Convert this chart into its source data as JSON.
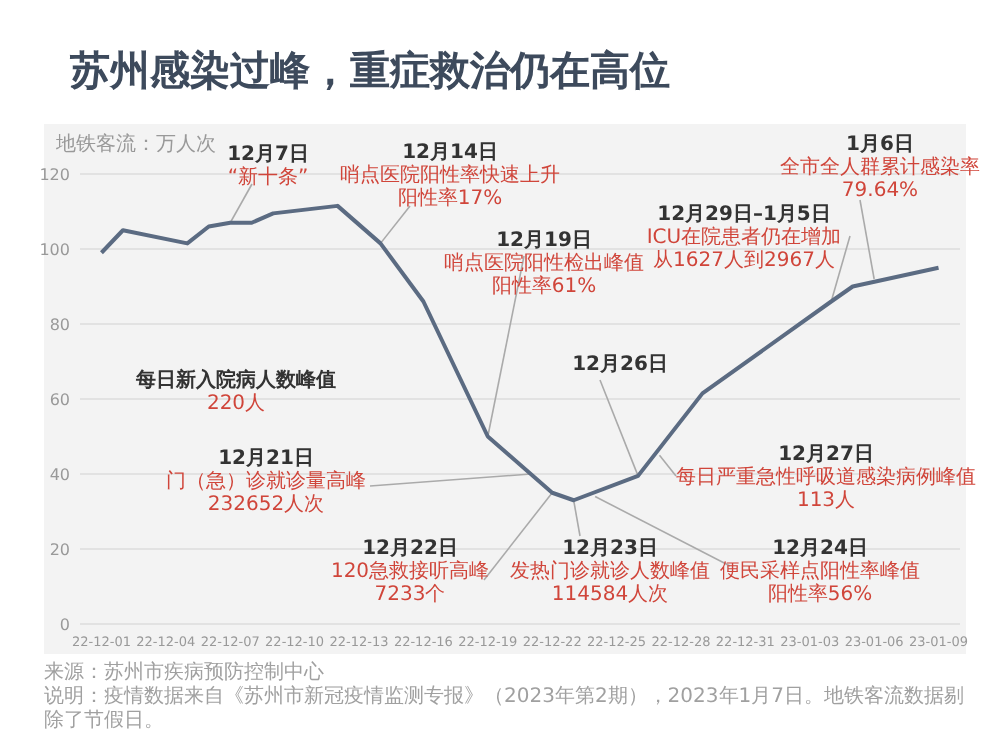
{
  "chart_data": {
    "type": "line",
    "title": "苏州感染过峰，重症救治仍在高位",
    "ylabel": "地铁客流：万人次",
    "x": [
      "2022-12-01",
      "2022-12-02",
      "2022-12-05",
      "2022-12-06",
      "2022-12-07",
      "2022-12-08",
      "2022-12-09",
      "2022-12-12",
      "2022-12-14",
      "2022-12-16",
      "2022-12-19",
      "2022-12-20",
      "2022-12-22",
      "2022-12-23",
      "2022-12-26",
      "2022-12-29",
      "2023-01-04",
      "2023-01-05",
      "2023-01-09"
    ],
    "series": [
      {
        "color": "#5b6b82",
        "values": [
          99,
          105,
          101.5,
          106,
          107,
          107,
          109.5,
          111.5,
          101.5,
          86,
          50,
          45,
          35,
          33,
          39.5,
          61.5,
          86,
          90,
          95
        ]
      }
    ],
    "xlim": [
      "2022-11-30",
      "2023-01-10"
    ],
    "xticks": [
      {
        "value": "2022-12-01",
        "label": "22-12-01"
      },
      {
        "value": "2022-12-04",
        "label": "22-12-04"
      },
      {
        "value": "2022-12-07",
        "label": "22-12-07"
      },
      {
        "value": "2022-12-10",
        "label": "22-12-10"
      },
      {
        "value": "2022-12-13",
        "label": "22-12-13"
      },
      {
        "value": "2022-12-16",
        "label": "22-12-16"
      },
      {
        "value": "2022-12-19",
        "label": "22-12-19"
      },
      {
        "value": "2022-12-22",
        "label": "22-12-22"
      },
      {
        "value": "2022-12-25",
        "label": "22-12-25"
      },
      {
        "value": "2022-12-28",
        "label": "22-12-28"
      },
      {
        "value": "2022-12-31",
        "label": "22-12-31"
      },
      {
        "value": "2023-01-03",
        "label": "23-01-03"
      },
      {
        "value": "2023-01-06",
        "label": "23-01-06"
      },
      {
        "value": "2023-01-09",
        "label": "23-01-09"
      }
    ],
    "ylim": [
      0,
      120
    ],
    "yticks": [
      0,
      20,
      40,
      60,
      80,
      100,
      120
    ],
    "grid": "y",
    "annotations": [
      {
        "text": "12月7日“新十条”",
        "x": "2022-12-07",
        "y": 107
      },
      {
        "text": "12月14日哨点医院阳性率快速上升阳性率17%",
        "x": "2022-12-14",
        "y": 101.5
      },
      {
        "text": "12月19日哨点医院阳性检出峰值阳性率61%",
        "x": "2022-12-19",
        "y": 50
      },
      "每日新入院病人数峰值220人",
      {
        "text": "12月21日门（急）诊就诊量高峰232652人次",
        "x": "2022-12-21",
        "y": 40
      },
      {
        "text": "12月22日120急救接听高峰7233个",
        "x": "2022-12-22",
        "y": 35
      },
      {
        "text": "12月23日发热门诊就诊人数峰值114584人次",
        "x": "2022-12-23",
        "y": 33
      },
      {
        "text": "12月24日便民采样点阳性率峰值阳性率56%",
        "x": "2022-12-24",
        "y": 34
      },
      {
        "text": "12月26日",
        "x": "2022-12-26",
        "y": 39.5
      },
      {
        "text": "12月27日每日严重急性呼吸道感染病例峰值113人",
        "x": "2022-12-27",
        "y": 45
      },
      {
        "text": "12月29日–1月5日ICU在院患者仍在增加从1627人到2967人",
        "x": "2023-01-04",
        "y": 86
      },
      {
        "text": "1月6日全市全人群累计感染率79.64%",
        "x": "2023-01-06",
        "y": 92
      },
      "来源：苏州市疾病预防控制中心",
      "说明：疫情数据来自《苏州市新冠疫情监测专报》（2023年第2期），2023年1月7日。地铁客流数据剔除了节假日。"
    ]
  }
}
